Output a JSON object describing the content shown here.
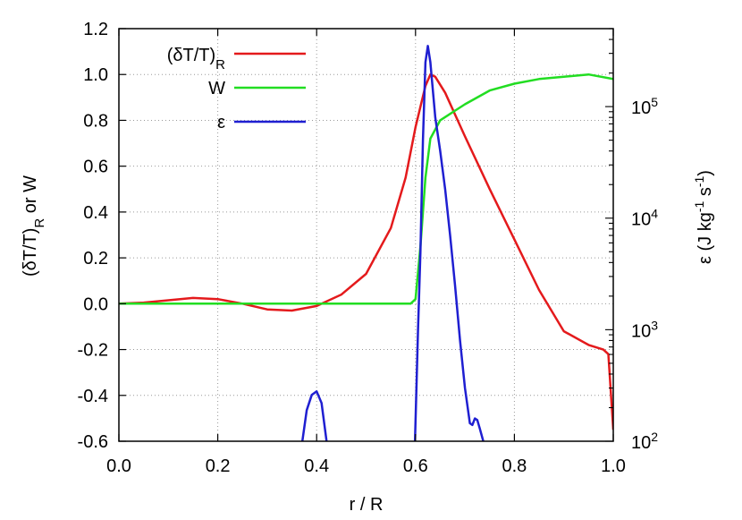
{
  "chart_data": {
    "type": "line",
    "xlabel": "r / R",
    "ylabel_left": "(δT/T)_R or W",
    "ylabel_right": "ε (J kg^-1 s^-1)",
    "xlim": [
      0.0,
      1.0
    ],
    "ylim_left": [
      -0.6,
      1.2
    ],
    "ylim_right": [
      100,
      500000
    ],
    "yscale_right": "log",
    "grid": true,
    "legend_position": "top-left",
    "x_ticks": [
      "0.0",
      "0.2",
      "0.4",
      "0.6",
      "0.8",
      "1.0"
    ],
    "y_ticks_left": [
      "-0.6",
      "-0.4",
      "-0.2",
      "0.0",
      "0.2",
      "0.4",
      "0.6",
      "0.8",
      "1.0",
      "1.2"
    ],
    "y_ticks_right": [
      {
        "base": "10",
        "exp": "2",
        "value": 100
      },
      {
        "base": "10",
        "exp": "3",
        "value": 1000
      },
      {
        "base": "10",
        "exp": "4",
        "value": 10000
      },
      {
        "base": "10",
        "exp": "5",
        "value": 100000
      }
    ],
    "colors": {
      "dTT": "#e41a1c",
      "W": "#22dd22",
      "eps": "#1f1fd1"
    },
    "series": [
      {
        "name": "(δT/T)_R",
        "axis": "left",
        "x": [
          0.0,
          0.05,
          0.1,
          0.15,
          0.2,
          0.25,
          0.3,
          0.35,
          0.4,
          0.45,
          0.5,
          0.55,
          0.58,
          0.6,
          0.62,
          0.63,
          0.64,
          0.66,
          0.7,
          0.75,
          0.8,
          0.85,
          0.9,
          0.95,
          0.98,
          0.99,
          1.0
        ],
        "y": [
          0.0,
          0.005,
          0.015,
          0.025,
          0.02,
          0.0,
          -0.025,
          -0.03,
          -0.01,
          0.04,
          0.13,
          0.33,
          0.55,
          0.77,
          0.95,
          1.0,
          0.99,
          0.92,
          0.73,
          0.5,
          0.28,
          0.06,
          -0.12,
          -0.18,
          -0.2,
          -0.22,
          -0.55
        ]
      },
      {
        "name": "W",
        "axis": "left",
        "x": [
          0.0,
          0.1,
          0.2,
          0.3,
          0.4,
          0.5,
          0.55,
          0.59,
          0.6,
          0.61,
          0.62,
          0.63,
          0.65,
          0.7,
          0.75,
          0.8,
          0.85,
          0.9,
          0.95,
          1.0
        ],
        "y": [
          0.0,
          0.0,
          0.0,
          0.0,
          0.0,
          0.0,
          0.0,
          0.0,
          0.02,
          0.25,
          0.55,
          0.72,
          0.8,
          0.87,
          0.93,
          0.96,
          0.98,
          0.99,
          1.0,
          0.98
        ]
      },
      {
        "name": "ε",
        "axis": "right",
        "segments": [
          {
            "x": [
              0.371,
              0.38,
              0.39,
              0.4,
              0.41,
              0.42
            ],
            "y": [
              100,
              190,
              260,
              280,
              220,
              100
            ]
          },
          {
            "x": [
              0.599,
              0.605,
              0.61,
              0.615,
              0.62,
              0.625,
              0.63,
              0.64,
              0.65,
              0.66,
              0.67,
              0.68,
              0.69,
              0.7,
              0.71,
              0.715,
              0.72,
              0.725,
              0.73,
              0.737
            ],
            "y": [
              100,
              1000,
              5000,
              50000,
              250000,
              350000,
              250000,
              80000,
              40000,
              18000,
              7000,
              2500,
              800,
              300,
              145,
              140,
              160,
              155,
              130,
              100
            ]
          }
        ]
      }
    ]
  }
}
